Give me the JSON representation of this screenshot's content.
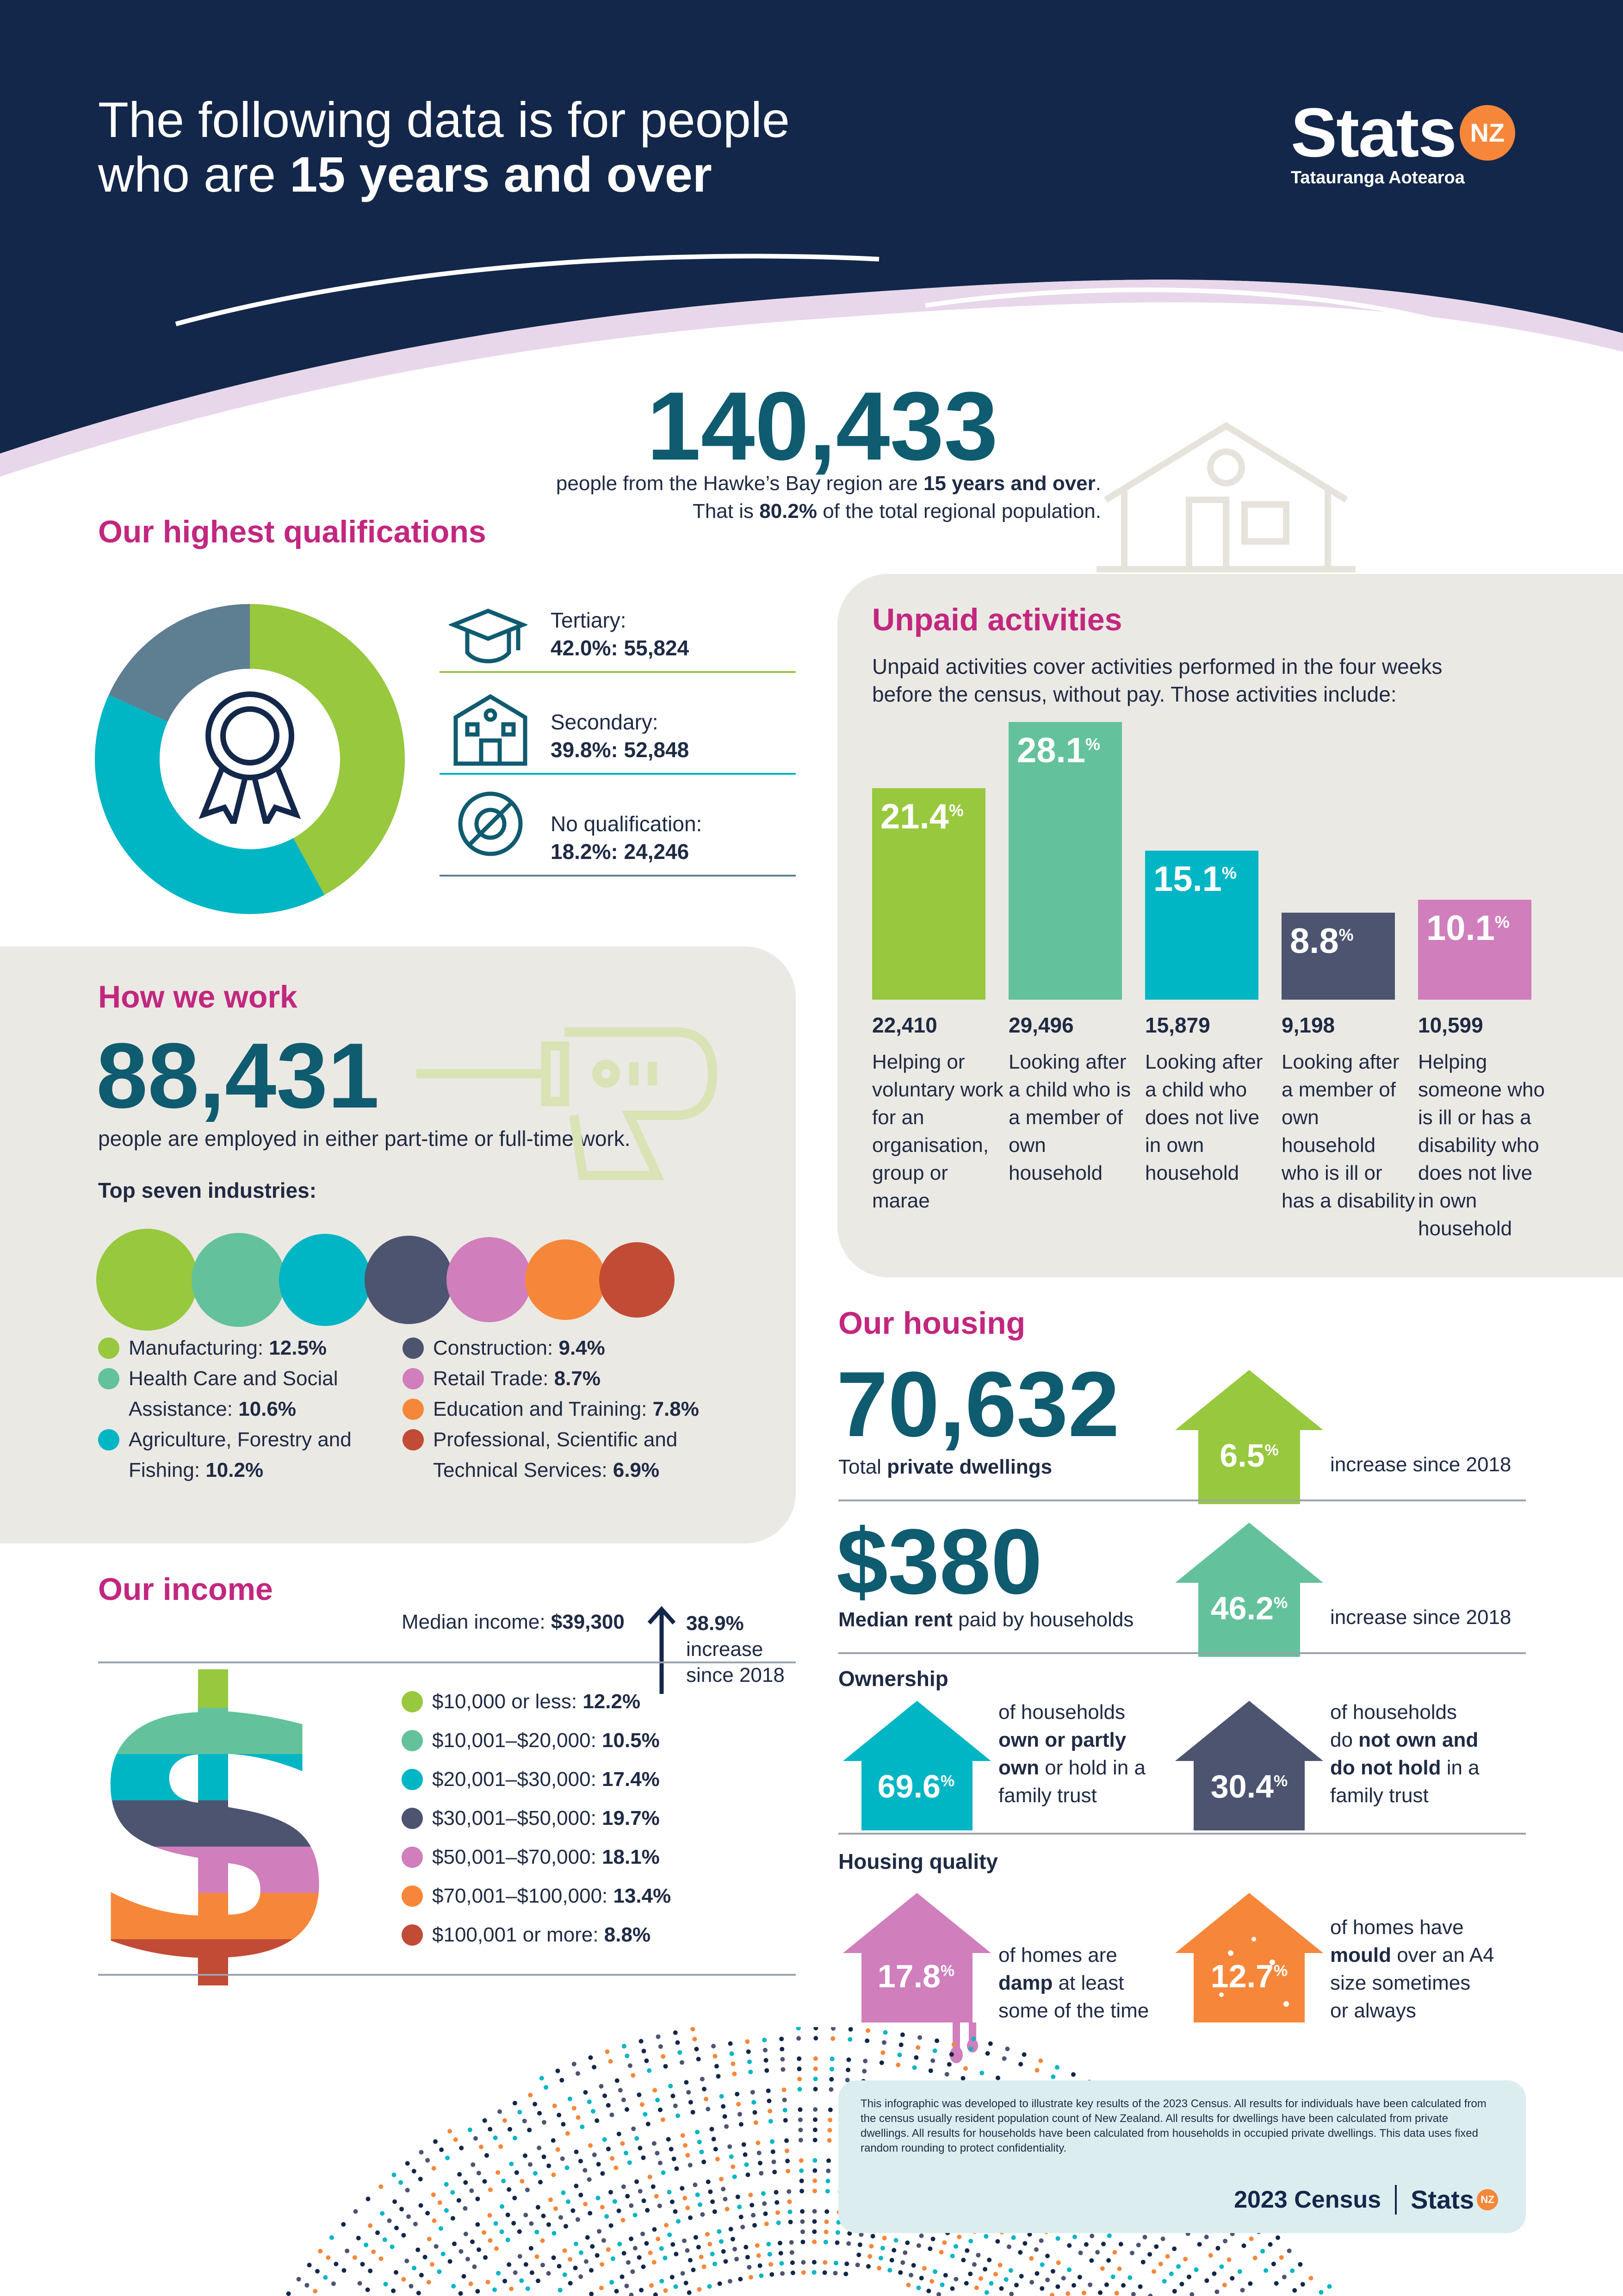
{
  "header": {
    "title_line1": "The following data is for people",
    "title_line2_prefix": "who are ",
    "title_line2_bold": "15 years and over",
    "logo_text": "Stats",
    "logo_badge": "NZ",
    "logo_sub": "Tatauranga Aotearoa"
  },
  "population": {
    "number": "140,433",
    "line1_prefix": "people from the Hawke’s Bay region are ",
    "line1_bold": "15 years and over",
    "line1_suffix": ".",
    "line2_prefix": "That is ",
    "line2_bold": "80.2%",
    "line2_suffix": " of the total regional population."
  },
  "qualifications": {
    "title": "Our highest qualifications",
    "items": [
      {
        "label": "Tertiary:",
        "value": "42.0%: 55,824",
        "percent": 42.0,
        "color": "#97c83e",
        "icon": "graduation-cap-icon"
      },
      {
        "label": "Secondary:",
        "value": "39.8%: 52,848",
        "percent": 39.8,
        "color": "#00b5c4",
        "icon": "school-building-icon"
      },
      {
        "label": "No qualification:",
        "value": "18.2%: 24,246",
        "percent": 18.2,
        "color": "#5e7e91",
        "icon": "no-qualification-icon"
      }
    ]
  },
  "work": {
    "title": "How we work",
    "number": "88,431",
    "description": "people are employed in either part-time or full-time work.",
    "industries_title": "Top seven industries:",
    "industries": [
      {
        "name": "Manufacturing:",
        "value": "12.5%",
        "percent": 12.5,
        "color": "#97c83e"
      },
      {
        "name": "Health Care and Social Assistance:",
        "value": "10.6%",
        "percent": 10.6,
        "color": "#63c29b"
      },
      {
        "name": "Agriculture, Forestry and Fishing:",
        "value": "10.2%",
        "percent": 10.2,
        "color": "#00b5c4"
      },
      {
        "name": "Construction:",
        "value": "9.4%",
        "percent": 9.4,
        "color": "#4c5470"
      },
      {
        "name": "Retail Trade:",
        "value": "8.7%",
        "percent": 8.7,
        "color": "#d07ebc"
      },
      {
        "name": "Education and Training:",
        "value": "7.8%",
        "percent": 7.8,
        "color": "#f6873a"
      },
      {
        "name": "Professional, Scientific and Technical Services:",
        "value": "6.9%",
        "percent": 6.9,
        "color": "#c24b35"
      }
    ]
  },
  "unpaid": {
    "title": "Unpaid activities",
    "description": "Unpaid activities cover activities performed in the four weeks before the census, without pay. Those activities include:",
    "bars": [
      {
        "value": "21.4",
        "percent": 21.4,
        "count": "22,410",
        "label": "Helping or voluntary work for an organisation, group or marae",
        "color": "#97c83e"
      },
      {
        "value": "28.1",
        "percent": 28.1,
        "count": "29,496",
        "label": "Looking after a child who is a member of own household",
        "color": "#63c29b"
      },
      {
        "value": "15.1",
        "percent": 15.1,
        "count": "15,879",
        "label": "Looking after a child who does not live in own household",
        "color": "#00b5c4"
      },
      {
        "value": "8.8",
        "percent": 8.8,
        "count": "9,198",
        "label": "Looking after a member of own household who is ill or has a disability",
        "color": "#4c5470"
      },
      {
        "value": "10.1",
        "percent": 10.1,
        "count": "10,599",
        "label": "Helping someone who is ill or has a disability who does not live in own household",
        "color": "#d07ebc"
      }
    ],
    "pct_symbol": "%"
  },
  "housing": {
    "title": "Our housing",
    "dwellings_number": "70,632",
    "dwellings_prefix": "Total ",
    "dwellings_bold": "private dwellings",
    "dwellings_increase": "6.5",
    "dwellings_increase_text": "increase since 2018",
    "rent_number": "$380",
    "rent_bold": "Median rent",
    "rent_suffix": " paid by households",
    "rent_increase": "46.2",
    "rent_increase_text": "increase since 2018",
    "ownership_title": "Ownership",
    "own_value": "69.6",
    "own_text_1": "of households",
    "own_text_2_bold": "own or partly",
    "own_text_3_bold": "own",
    "own_text_3_suffix": " or hold in a",
    "own_text_4": "family trust",
    "notown_value": "30.4",
    "notown_text_1": "of households",
    "notown_text_2_prefix": "do ",
    "notown_text_2_bold": "not own and",
    "notown_text_3_bold": "do not hold",
    "notown_text_3_suffix": " in a",
    "notown_text_4": "family trust",
    "quality_title": "Housing quality",
    "damp_value": "17.8",
    "damp_text_1": "of homes are",
    "damp_text_2_bold": "damp",
    "damp_text_2_suffix": " at least",
    "damp_text_3": "some of the time",
    "mould_value": "12.7",
    "mould_text_1": "of homes have",
    "mould_text_2_bold": "mould",
    "mould_text_2_suffix": " over an A4",
    "mould_text_3": "size sometimes",
    "mould_text_4": "or always",
    "pct_symbol": "%"
  },
  "income": {
    "title": "Our income",
    "median_label": "Median income: ",
    "median_value": "$39,300",
    "increase_value": "38.9%",
    "increase_text": "increase since 2018",
    "bands": [
      {
        "range": "$10,000 or less:",
        "value": "12.2%",
        "percent": 12.2,
        "color": "#97c83e"
      },
      {
        "range": "$10,001–$20,000:",
        "value": "10.5%",
        "percent": 10.5,
        "color": "#63c29b"
      },
      {
        "range": "$20,001–$30,000:",
        "value": "17.4%",
        "percent": 17.4,
        "color": "#00b5c4"
      },
      {
        "range": "$30,001–$50,000:",
        "value": "19.7%",
        "percent": 19.7,
        "color": "#4c5470"
      },
      {
        "range": "$50,001–$70,000:",
        "value": "18.1%",
        "percent": 18.1,
        "color": "#d07ebc"
      },
      {
        "range": "$70,001–$100,000:",
        "value": "13.4%",
        "percent": 13.4,
        "color": "#f6873a"
      },
      {
        "range": "$100,001 or more:",
        "value": "8.8%",
        "percent": 8.8,
        "color": "#c24b35"
      }
    ]
  },
  "footer": {
    "note": "This infographic was developed to illustrate key results of the 2023 Census. All results for individuals have been calculated from the census usually resident population count of New Zealand. All results for dwellings have been calculated from private dwellings. All results for households have been calculated from households in occupied private dwellings. This data uses fixed random rounding to protect confidentiality.",
    "census": "2023 Census",
    "logo_text": "Stats",
    "logo_badge": "NZ"
  },
  "colors": {
    "navy": "#13274a",
    "magenta": "#c2277f",
    "teal_dark": "#0f5b70",
    "beige": "#ebe9e3",
    "orange": "#f6873a"
  }
}
